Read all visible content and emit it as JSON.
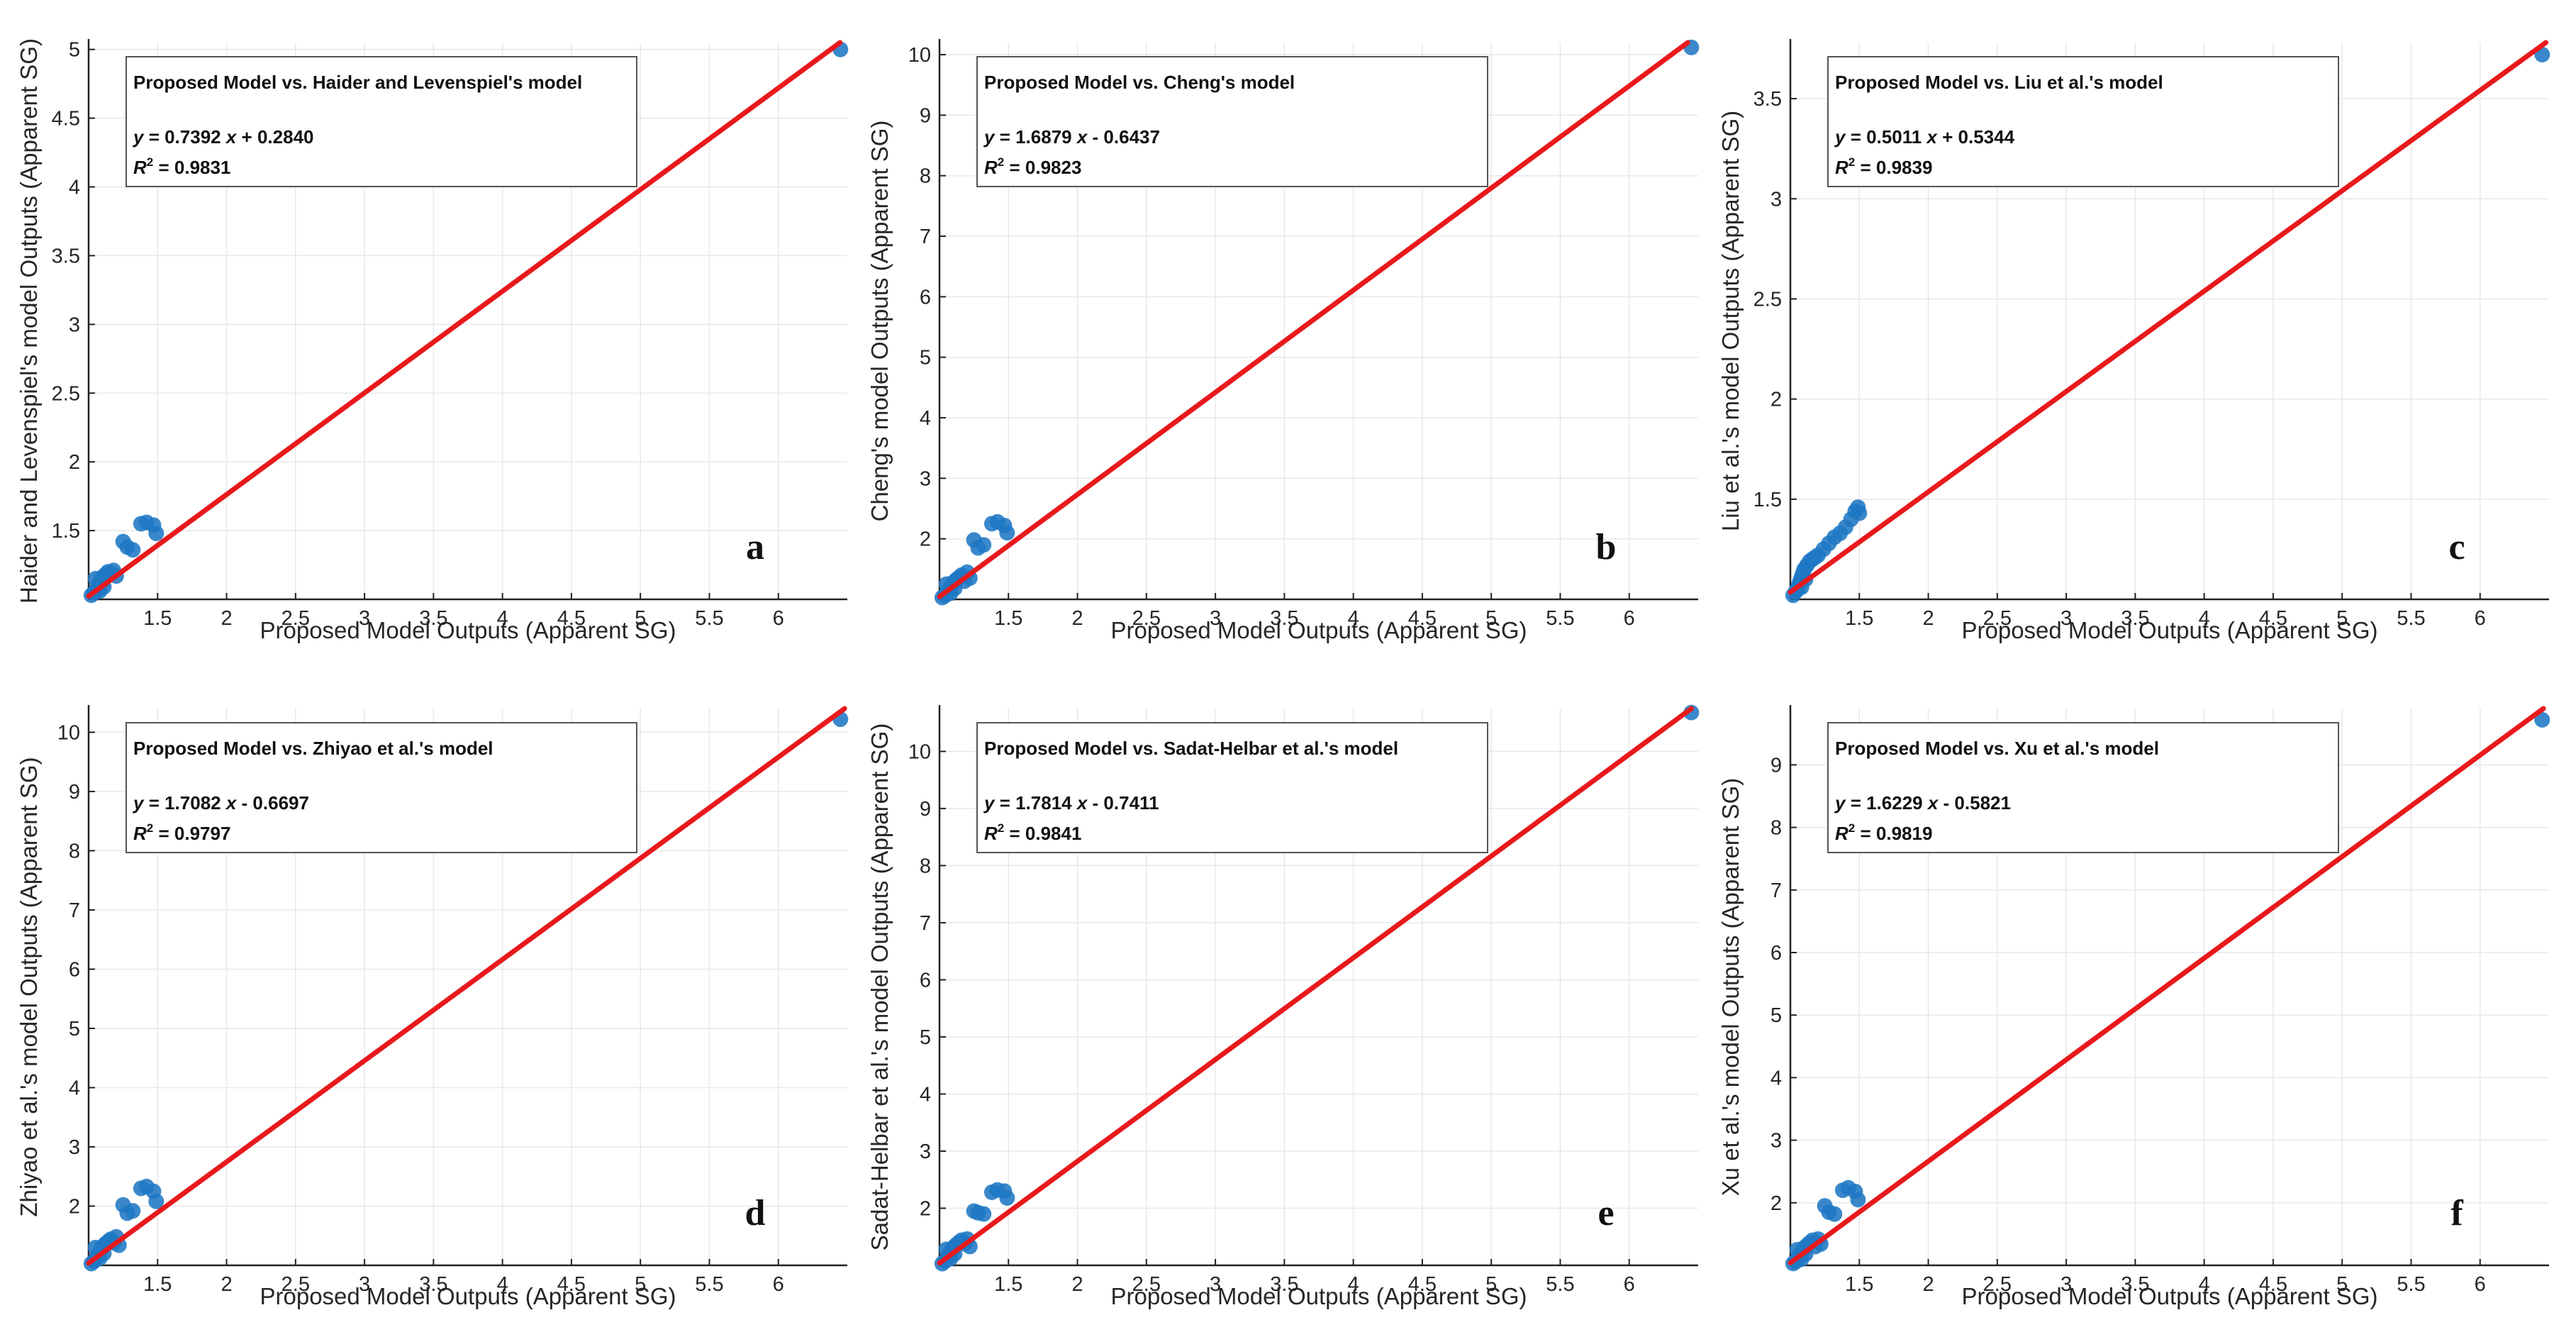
{
  "colors": {
    "points": "#1f77c4",
    "fit_line": "#e8191c",
    "grid": "#e8e8e8"
  },
  "chart_data": [
    {
      "type": "scatter",
      "panel_label": "a",
      "legend_title": "Proposed Model vs. Haider and Levenspiel's model",
      "equation_slope": "0.7392",
      "equation_sign": "+",
      "equation_intercept": "0.2840",
      "r2": "0.9831",
      "xlabel": "Proposed Model Outputs (Apparent SG)",
      "ylabel": "Haider and Levenspiel's model Outputs (Apparent SG)",
      "xlim": [
        1,
        6.5
      ],
      "ylim": [
        1,
        5.05
      ],
      "xticks": [
        1.5,
        2,
        2.5,
        3,
        3.5,
        4,
        4.5,
        5,
        5.5,
        6
      ],
      "xtick_labels": [
        "1.5",
        "2",
        "2.5",
        "3",
        "3.5",
        "4",
        "4.5",
        "5",
        "5.5",
        "6"
      ],
      "yticks": [
        1.5,
        2,
        2.5,
        3,
        3.5,
        4,
        4.5,
        5
      ],
      "ytick_labels": [
        "1.5",
        "2",
        "2.5",
        "3",
        "3.5",
        "4",
        "4.5",
        "5"
      ],
      "fit": {
        "slope": 0.7392,
        "intercept": 0.284
      },
      "points": [
        [
          1.02,
          1.03
        ],
        [
          1.04,
          1.05
        ],
        [
          1.05,
          1.06
        ],
        [
          1.06,
          1.08
        ],
        [
          1.07,
          1.1
        ],
        [
          1.08,
          1.12
        ],
        [
          1.09,
          1.14
        ],
        [
          1.1,
          1.16
        ],
        [
          1.12,
          1.18
        ],
        [
          1.14,
          1.2
        ],
        [
          1.16,
          1.19
        ],
        [
          1.18,
          1.21
        ],
        [
          1.2,
          1.17
        ],
        [
          1.08,
          1.06
        ],
        [
          1.11,
          1.09
        ],
        [
          1.05,
          1.15
        ],
        [
          1.1,
          1.13
        ],
        [
          1.25,
          1.42
        ],
        [
          1.28,
          1.38
        ],
        [
          1.32,
          1.36
        ],
        [
          1.38,
          1.55
        ],
        [
          1.42,
          1.56
        ],
        [
          1.47,
          1.54
        ],
        [
          1.49,
          1.48
        ],
        [
          6.45,
          5.0
        ]
      ]
    },
    {
      "type": "scatter",
      "panel_label": "b",
      "legend_title": "Proposed Model vs. Cheng's model",
      "equation_slope": "1.6879",
      "equation_sign": "-",
      "equation_intercept": "0.6437",
      "r2": "0.9823",
      "xlabel": "Proposed Model Outputs (Apparent SG)",
      "ylabel": "Cheng's model Outputs (Apparent SG)",
      "xlim": [
        1,
        6.5
      ],
      "ylim": [
        1,
        10.2
      ],
      "xticks": [
        1.5,
        2,
        2.5,
        3,
        3.5,
        4,
        4.5,
        5,
        5.5,
        6
      ],
      "xtick_labels": [
        "1.5",
        "2",
        "2.5",
        "3",
        "3.5",
        "4",
        "4.5",
        "5",
        "5.5",
        "6"
      ],
      "yticks": [
        2,
        3,
        4,
        5,
        6,
        7,
        8,
        9,
        10
      ],
      "ytick_labels": [
        "2",
        "3",
        "4",
        "5",
        "6",
        "7",
        "8",
        "9",
        "10"
      ],
      "fit": {
        "slope": 1.6879,
        "intercept": -0.6437
      },
      "points": [
        [
          1.02,
          1.03
        ],
        [
          1.04,
          1.06
        ],
        [
          1.05,
          1.09
        ],
        [
          1.06,
          1.12
        ],
        [
          1.07,
          1.16
        ],
        [
          1.08,
          1.2
        ],
        [
          1.09,
          1.24
        ],
        [
          1.1,
          1.28
        ],
        [
          1.12,
          1.32
        ],
        [
          1.14,
          1.36
        ],
        [
          1.16,
          1.4
        ],
        [
          1.18,
          1.3
        ],
        [
          1.2,
          1.45
        ],
        [
          1.08,
          1.1
        ],
        [
          1.11,
          1.18
        ],
        [
          1.05,
          1.25
        ],
        [
          1.22,
          1.35
        ],
        [
          1.25,
          1.98
        ],
        [
          1.28,
          1.85
        ],
        [
          1.32,
          1.9
        ],
        [
          1.38,
          2.25
        ],
        [
          1.42,
          2.28
        ],
        [
          1.47,
          2.22
        ],
        [
          1.49,
          2.1
        ],
        [
          6.45,
          10.12
        ]
      ]
    },
    {
      "type": "scatter",
      "panel_label": "c",
      "legend_title": "Proposed Model vs. Liu et al.'s model",
      "equation_slope": "0.5011",
      "equation_sign": "+",
      "equation_intercept": "0.5344",
      "r2": "0.9839",
      "xlabel": "Proposed Model Outputs (Apparent SG)",
      "ylabel": "Liu et al.'s model Outputs (Apparent SG)",
      "xlim": [
        1,
        6.5
      ],
      "ylim": [
        1,
        3.78
      ],
      "xticks": [
        1.5,
        2,
        2.5,
        3,
        3.5,
        4,
        4.5,
        5,
        5.5,
        6
      ],
      "xtick_labels": [
        "1.5",
        "2",
        "2.5",
        "3",
        "3.5",
        "4",
        "4.5",
        "5",
        "5.5",
        "6"
      ],
      "yticks": [
        1.5,
        2,
        2.5,
        3,
        3.5
      ],
      "ytick_labels": [
        "1.5",
        "2",
        "2.5",
        "3",
        "3.5"
      ],
      "fit": {
        "slope": 0.5011,
        "intercept": 0.5344
      },
      "points": [
        [
          1.02,
          1.02
        ],
        [
          1.04,
          1.04
        ],
        [
          1.05,
          1.05
        ],
        [
          1.06,
          1.07
        ],
        [
          1.07,
          1.09
        ],
        [
          1.08,
          1.11
        ],
        [
          1.09,
          1.13
        ],
        [
          1.1,
          1.15
        ],
        [
          1.12,
          1.17
        ],
        [
          1.14,
          1.19
        ],
        [
          1.16,
          1.2
        ],
        [
          1.18,
          1.21
        ],
        [
          1.2,
          1.22
        ],
        [
          1.08,
          1.06
        ],
        [
          1.11,
          1.1
        ],
        [
          1.24,
          1.25
        ],
        [
          1.28,
          1.28
        ],
        [
          1.32,
          1.31
        ],
        [
          1.36,
          1.33
        ],
        [
          1.4,
          1.36
        ],
        [
          1.44,
          1.4
        ],
        [
          1.47,
          1.44
        ],
        [
          1.49,
          1.46
        ],
        [
          1.5,
          1.43
        ],
        [
          6.45,
          3.72
        ]
      ]
    },
    {
      "type": "scatter",
      "panel_label": "d",
      "legend_title": "Proposed Model vs. Zhiyao et al.'s model",
      "equation_slope": "1.7082",
      "equation_sign": "-",
      "equation_intercept": "0.6697",
      "r2": "0.9797",
      "xlabel": "Proposed Model Outputs (Apparent SG)",
      "ylabel": "Zhiyao et al.'s model Outputs (Apparent SG)",
      "xlim": [
        1,
        6.5
      ],
      "ylim": [
        1,
        10.4
      ],
      "xticks": [
        1.5,
        2,
        2.5,
        3,
        3.5,
        4,
        4.5,
        5,
        5.5,
        6
      ],
      "xtick_labels": [
        "1.5",
        "2",
        "2.5",
        "3",
        "3.5",
        "4",
        "4.5",
        "5",
        "5.5",
        "6"
      ],
      "yticks": [
        2,
        3,
        4,
        5,
        6,
        7,
        8,
        9,
        10
      ],
      "ytick_labels": [
        "2",
        "3",
        "4",
        "5",
        "6",
        "7",
        "8",
        "9",
        "10"
      ],
      "fit": {
        "slope": 1.7082,
        "intercept": -0.6697
      },
      "points": [
        [
          1.02,
          1.03
        ],
        [
          1.04,
          1.07
        ],
        [
          1.05,
          1.1
        ],
        [
          1.06,
          1.14
        ],
        [
          1.07,
          1.18
        ],
        [
          1.08,
          1.22
        ],
        [
          1.09,
          1.27
        ],
        [
          1.1,
          1.31
        ],
        [
          1.12,
          1.36
        ],
        [
          1.14,
          1.4
        ],
        [
          1.16,
          1.44
        ],
        [
          1.18,
          1.38
        ],
        [
          1.2,
          1.48
        ],
        [
          1.08,
          1.12
        ],
        [
          1.11,
          1.2
        ],
        [
          1.05,
          1.3
        ],
        [
          1.22,
          1.34
        ],
        [
          1.25,
          2.02
        ],
        [
          1.28,
          1.88
        ],
        [
          1.32,
          1.92
        ],
        [
          1.38,
          2.3
        ],
        [
          1.42,
          2.33
        ],
        [
          1.47,
          2.25
        ],
        [
          1.49,
          2.08
        ],
        [
          6.45,
          10.22
        ]
      ]
    },
    {
      "type": "scatter",
      "panel_label": "e",
      "legend_title": "Proposed Model vs. Sadat-Helbar et al.'s model",
      "equation_slope": "1.7814",
      "equation_sign": "-",
      "equation_intercept": "0.7411",
      "r2": "0.9841",
      "xlabel": "Proposed Model Outputs (Apparent SG)",
      "ylabel": "Sadat-Helbar et al.'s model Outputs (Apparent SG)",
      "xlim": [
        1,
        6.5
      ],
      "ylim": [
        1,
        10.75
      ],
      "xticks": [
        1.5,
        2,
        2.5,
        3,
        3.5,
        4,
        4.5,
        5,
        5.5,
        6
      ],
      "xtick_labels": [
        "1.5",
        "2",
        "2.5",
        "3",
        "3.5",
        "4",
        "4.5",
        "5",
        "5.5",
        "6"
      ],
      "yticks": [
        2,
        3,
        4,
        5,
        6,
        7,
        8,
        9,
        10
      ],
      "ytick_labels": [
        "2",
        "3",
        "4",
        "5",
        "6",
        "7",
        "8",
        "9",
        "10"
      ],
      "fit": {
        "slope": 1.7814,
        "intercept": -0.7411
      },
      "points": [
        [
          1.02,
          1.03
        ],
        [
          1.04,
          1.07
        ],
        [
          1.05,
          1.1
        ],
        [
          1.06,
          1.14
        ],
        [
          1.07,
          1.18
        ],
        [
          1.08,
          1.22
        ],
        [
          1.09,
          1.27
        ],
        [
          1.1,
          1.31
        ],
        [
          1.12,
          1.36
        ],
        [
          1.14,
          1.4
        ],
        [
          1.16,
          1.44
        ],
        [
          1.18,
          1.38
        ],
        [
          1.2,
          1.46
        ],
        [
          1.08,
          1.12
        ],
        [
          1.11,
          1.2
        ],
        [
          1.05,
          1.28
        ],
        [
          1.22,
          1.33
        ],
        [
          1.25,
          1.95
        ],
        [
          1.28,
          1.92
        ],
        [
          1.32,
          1.9
        ],
        [
          1.38,
          2.28
        ],
        [
          1.42,
          2.32
        ],
        [
          1.47,
          2.3
        ],
        [
          1.49,
          2.18
        ],
        [
          6.45,
          10.68
        ]
      ]
    },
    {
      "type": "scatter",
      "panel_label": "f",
      "legend_title": "Proposed Model vs. Xu et al.'s model",
      "equation_slope": "1.6229",
      "equation_sign": "-",
      "equation_intercept": "0.5821",
      "r2": "0.9819",
      "xlabel": "Proposed Model Outputs (Apparent SG)",
      "ylabel": "Xu et al.'s model Outputs (Apparent SG)",
      "xlim": [
        1,
        6.5
      ],
      "ylim": [
        1,
        9.9
      ],
      "xticks": [
        1.5,
        2,
        2.5,
        3,
        3.5,
        4,
        4.5,
        5,
        5.5,
        6
      ],
      "xtick_labels": [
        "1.5",
        "2",
        "2.5",
        "3",
        "3.5",
        "4",
        "4.5",
        "5",
        "5.5",
        "6"
      ],
      "yticks": [
        2,
        3,
        4,
        5,
        6,
        7,
        8,
        9
      ],
      "ytick_labels": [
        "2",
        "3",
        "4",
        "5",
        "6",
        "7",
        "8",
        "9"
      ],
      "fit": {
        "slope": 1.6229,
        "intercept": -0.5821
      },
      "points": [
        [
          1.02,
          1.03
        ],
        [
          1.04,
          1.06
        ],
        [
          1.05,
          1.09
        ],
        [
          1.06,
          1.12
        ],
        [
          1.07,
          1.16
        ],
        [
          1.08,
          1.2
        ],
        [
          1.09,
          1.24
        ],
        [
          1.1,
          1.28
        ],
        [
          1.12,
          1.32
        ],
        [
          1.14,
          1.36
        ],
        [
          1.16,
          1.4
        ],
        [
          1.18,
          1.3
        ],
        [
          1.2,
          1.42
        ],
        [
          1.08,
          1.1
        ],
        [
          1.11,
          1.18
        ],
        [
          1.05,
          1.25
        ],
        [
          1.22,
          1.34
        ],
        [
          1.25,
          1.95
        ],
        [
          1.28,
          1.85
        ],
        [
          1.32,
          1.82
        ],
        [
          1.38,
          2.2
        ],
        [
          1.42,
          2.24
        ],
        [
          1.47,
          2.18
        ],
        [
          1.49,
          2.05
        ],
        [
          6.45,
          9.72
        ]
      ]
    }
  ]
}
